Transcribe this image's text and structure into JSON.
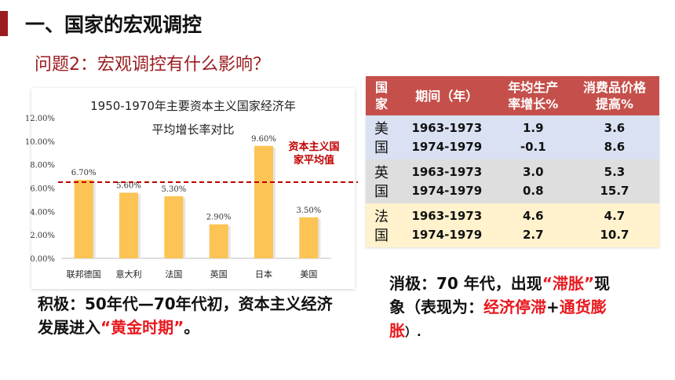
{
  "header": {
    "title": "一、国家的宏观调控"
  },
  "question": "问题2：宏观调控有什么影响？",
  "chart_data": {
    "type": "bar",
    "title": "1950-1970年主要资本主义国家经济年",
    "subtitle": "平均增长率对比",
    "categories": [
      "联邦德国",
      "意大利",
      "法国",
      "英国",
      "日本",
      "美国"
    ],
    "values": [
      6.7,
      5.6,
      5.3,
      2.9,
      9.6,
      3.5
    ],
    "data_labels": [
      "6.70%",
      "5.60%",
      "5.30%",
      "2.90%",
      "9.60%",
      "3.50%"
    ],
    "ylim": [
      0,
      12
    ],
    "yticks": [
      "0.00%",
      "2.00%",
      "4.00%",
      "6.00%",
      "8.00%",
      "10.00%",
      "12.00%"
    ],
    "average_line": {
      "value": 6.5,
      "label": [
        "资本主义国",
        "家平均值"
      ]
    },
    "bar_color": "#fcc454",
    "line_color": "#c00000",
    "grid": false
  },
  "table": {
    "headers": [
      "国家",
      "期间（年）",
      "年均生产率增长%",
      "消费品价格提高%"
    ],
    "groups": [
      {
        "country": "美国",
        "rows": [
          {
            "period": "1963-1973",
            "productivity": "1.9",
            "price": "3.6"
          },
          {
            "period": "1974-1979",
            "productivity": "-0.1",
            "price": "8.6"
          }
        ]
      },
      {
        "country": "英国",
        "rows": [
          {
            "period": "1963-1973",
            "productivity": "3.0",
            "price": "5.3"
          },
          {
            "period": "1974-1979",
            "productivity": "0.8",
            "price": "15.7"
          }
        ]
      },
      {
        "country": "法国",
        "rows": [
          {
            "period": "1963-1973",
            "productivity": "4.6",
            "price": "4.7"
          },
          {
            "period": "1974-1979",
            "productivity": "2.7",
            "price": "10.7"
          }
        ]
      }
    ],
    "colors": {
      "header": "#c5504b",
      "usa": "#d9e1f2",
      "uk": "#dedede",
      "france": "#fff2cc"
    }
  },
  "positive": {
    "text1": "积极：50年代—70年代初，资本主义经济发展进入",
    "highlight": "“黄金时期”",
    "text2": "。"
  },
  "negative": {
    "text1": "消极：70 年代，出现",
    "hl1": "“滞胀”",
    "text2": "现象（表现为：",
    "hl2": "经济停滞",
    "text3": "+",
    "hl3": "通货膨胀",
    "text4": "）."
  }
}
